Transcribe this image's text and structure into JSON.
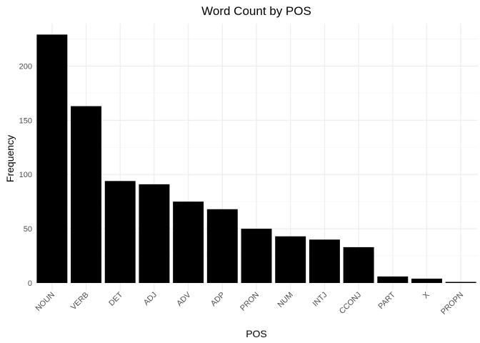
{
  "chart_data": {
    "type": "bar",
    "title": "Word Count by POS",
    "xlabel": "POS",
    "ylabel": "Frequency",
    "categories": [
      "NOUN",
      "VERB",
      "DET",
      "ADJ",
      "ADV",
      "ADP",
      "PRON",
      "NUM",
      "INTJ",
      "CCONJ",
      "PART",
      "X",
      "PROPN"
    ],
    "values": [
      229,
      163,
      94,
      91,
      75,
      68,
      50,
      43,
      40,
      33,
      6,
      4,
      1
    ],
    "ylim": [
      0,
      240
    ],
    "yticks": [
      0,
      50,
      100,
      150,
      200
    ],
    "grid": true,
    "bar_color": "#000000",
    "grid_color": "#ebebeb"
  }
}
